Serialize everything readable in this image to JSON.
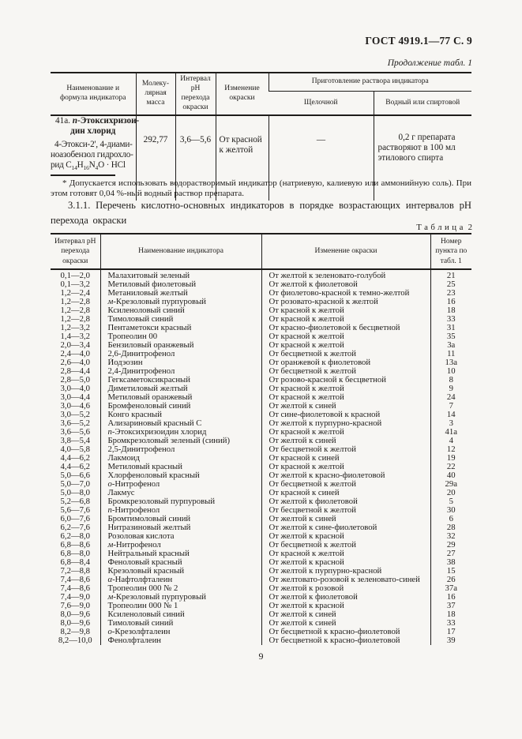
{
  "colors": {
    "page-bg": "#f7f6f3",
    "ink": "#1e1c1a"
  },
  "page": {
    "header": "ГОСТ 4919.1—77 С. 9",
    "continuation_note": "Продолжение табл. 1",
    "page_number": "9"
  },
  "table1": {
    "headers": {
      "name": "Наименование и формула индикатора",
      "mass": "Молеку­лярная масса",
      "interval": "Интервал pH перехода окраски",
      "change": "Изменение окраски",
      "preparation": "Приготовление раствора индикатора",
      "alkaline": "Щелочной",
      "aqueous": "Водный или спиртовой"
    },
    "row": {
      "number": "41а.",
      "name_prefix": "п",
      "name_line1": "-Этоксихризои-",
      "name_line2": "дин хлорид",
      "formula_line1": "4-Этокси-2', 4-диами-",
      "formula_line2": "ноазобензол гидрохло-",
      "formula_line3_parts": [
        {
          "t": "рид C"
        },
        {
          "s": "14"
        },
        {
          "t": "H"
        },
        {
          "s": "16"
        },
        {
          "t": "N"
        },
        {
          "s": "4"
        },
        {
          "t": "O · HCl"
        }
      ],
      "mass": "292,77",
      "interval": "3,6—5,6",
      "change": "От красной к желтой",
      "alkaline": "—",
      "aqueous": "0,2 г препарата раство­ряют в 100 мл этилового спирта"
    },
    "footnote": "* Допускается использовать водорастворимый индикатор (натриевую, калиевую или аммонийную соль). При этом готовят 0,04 %-ный водный раствор препарата."
  },
  "section": {
    "text": "3.1.1. Перечень кислотно-основных индикаторов в порядке возрастающих интервалов pH перехода окраски"
  },
  "table2": {
    "label_word": "Таблица",
    "label_num": "2",
    "headers": {
      "interval": "Интервал pH перехода окраски",
      "name": "Наименование индикатора",
      "change": "Изменение окраски",
      "number": "Номер пункта по табл. 1"
    },
    "rows": [
      [
        "0,1—2,0",
        "Малахитовый зеленый",
        "От желтой к зеленовато-голубой",
        "21"
      ],
      [
        "0,1—3,2",
        "Метиловый фиолетовый",
        "От желтой к фиолетовой",
        "25"
      ],
      [
        "1,2—2,4",
        "Метаниловый желтый",
        "От фиолетово-красной к темно-желтой",
        "23"
      ],
      [
        "1,2—2,8",
        "м-Крезоловый пурпуровый",
        "От розовато-красной к желтой",
        "16"
      ],
      [
        "1,2—2,8",
        "Ксиленоловый синий",
        "От красной к желтой",
        "18"
      ],
      [
        "1,2—2,8",
        "Тимоловый синий",
        "От красной к желтой",
        "33"
      ],
      [
        "1,2—3,2",
        "Пентаметокси красный",
        "От красно-фиолетовой к бесцветной",
        "31"
      ],
      [
        "1,4—3,2",
        "Тропеолин 00",
        "От красной к желтой",
        "35"
      ],
      [
        "2,0—3,4",
        "Бензиловый оранжевый",
        "От красной к желтой",
        "3а"
      ],
      [
        "2,4—4,0",
        "2,6-Динитрофенол",
        "От бесцветной к желтой",
        "11"
      ],
      [
        "2,6—4,0",
        "Йодэозин",
        "От оранжевой к фиолетовой",
        "13а"
      ],
      [
        "2,8—4,4",
        "2,4-Динитрофенол",
        "От бесцветной к желтой",
        "10"
      ],
      [
        "2,8—5,0",
        "Гегксаметоксикрасный",
        "От розово-красной к бесцветной",
        "8"
      ],
      [
        "3,0—4,0",
        "Диметиловый желтый",
        "От красной к желтой",
        "9"
      ],
      [
        "3,0—4,4",
        "Метиловый оранжевый",
        "От красной к желтой",
        "24"
      ],
      [
        "3,0—4,6",
        "Бромфеноловый синий",
        "От желтой к синей",
        "7"
      ],
      [
        "3,0—5,2",
        "Конго красный",
        "От сине-фиолетовой к красной",
        "14"
      ],
      [
        "3,6—5,2",
        "Ализариновый красный С",
        "От желтой к пурпурно-красной",
        "3"
      ],
      [
        "3,6—5,6",
        "п-Этоксихризоидин хлорид",
        "От красной к желтой",
        "41а"
      ],
      [
        "3,8—5,4",
        "Бромкрезоловый зеленый (синий)",
        "От желтой к синей",
        "4"
      ],
      [
        "4,0—5,8",
        "2,5-Динитрофенол",
        "От бесцветной к желтой",
        "12"
      ],
      [
        "4,4—6,2",
        "Лакмоид",
        "От красной к синей",
        "19"
      ],
      [
        "4,4—6,2",
        "Метиловый красный",
        "От красной к желтой",
        "22"
      ],
      [
        "5,0—6,6",
        "Хлорфеноловый красный",
        "От желтой к красно-фиолетовой",
        "40"
      ],
      [
        "5,0—7,0",
        "о-Нитрофенол",
        "От бесцветной к желтой",
        "29а"
      ],
      [
        "5,0—8,0",
        "Лакмус",
        "От красной к синей",
        "20"
      ],
      [
        "5,2—6,8",
        "Бромкрезоловый пурпуровый",
        "От желтой к фиолетовой",
        "5"
      ],
      [
        "5,6—7,6",
        "п-Нитрофенол",
        "От бесцветной к желтой",
        "30"
      ],
      [
        "6,0—7,6",
        "Бромтимоловый синий",
        "От желтой к синей",
        "6"
      ],
      [
        "6,2—7,6",
        "Нитразиновый желтый",
        "От желтой к сине-фиолетовой",
        "28"
      ],
      [
        "6,2—8,0",
        "Розоловая кислота",
        "От желтой к красной",
        "32"
      ],
      [
        "6,8—8,6",
        "м-Нитрофенол",
        "От бесцветной к желтой",
        "29"
      ],
      [
        "6,8—8,0",
        "Нейтральный красный",
        "От красной к желтой",
        "27"
      ],
      [
        "6,8—8,4",
        "Феноловый красный",
        "От желтой к красной",
        "38"
      ],
      [
        "7,2—8,8",
        "Крезоловый красный",
        "От желтой к пурпурно-красной",
        "15"
      ],
      [
        "7,4—8,6",
        "α-Нафтолфталеин",
        "От желтовато-розовой к зеленовато-синей",
        "26"
      ],
      [
        "7,4—8,6",
        "Тропеолин 000 № 2",
        "От желтой к розовой",
        "37а"
      ],
      [
        "7,4—9,0",
        "м-Крезоловый пурпуровый",
        "От желтой к фиолетовой",
        "16"
      ],
      [
        "7,6—9,0",
        "Тропеолин 000 № 1",
        "От желтой к красной",
        "37"
      ],
      [
        "8,0—9,6",
        "Ксиленоловый синий",
        "От желтой к синей",
        "18"
      ],
      [
        "8,0—9,6",
        "Тимоловый синий",
        "От желтой к синей",
        "33"
      ],
      [
        "8,2—9,8",
        "о-Крезолфталеин",
        "От бесцветной к красно-фиолетовой",
        "17"
      ],
      [
        "8,2—10,0",
        "Фенолфталеин",
        "От бесцветной к красно-фиолетовой",
        "39"
      ]
    ]
  }
}
